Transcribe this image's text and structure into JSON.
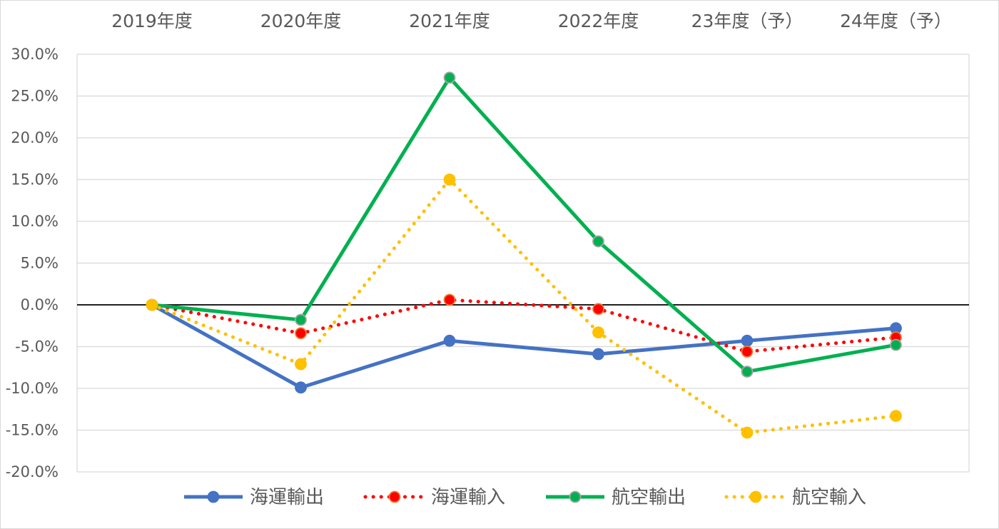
{
  "chart_data": {
    "type": "line",
    "categories": [
      "2019年度",
      "2020年度",
      "2021年度",
      "2022年度",
      "23年度（予）",
      "24年度（予）"
    ],
    "y_tick_labels": [
      "30.0%",
      "25.0%",
      "20.0%",
      "15.0%",
      "10.0%",
      "5.0%",
      "0.0%",
      "-5.0%",
      "-10.0%",
      "-15.0%",
      "-20.0%"
    ],
    "ylim": [
      -20,
      30
    ],
    "y_step": 5,
    "y_unit": "%",
    "grid": true,
    "x_axis_position": "top",
    "legend_position": "bottom",
    "series": [
      {
        "name": "海運輸出",
        "values": [
          0.0,
          -9.9,
          -4.3,
          -5.9,
          -4.3,
          -2.8
        ],
        "color": "#4472C4",
        "line_style": "solid",
        "marker_fill": "#4472C4",
        "marker_stroke": "#4472C4"
      },
      {
        "name": "海運輸入",
        "values": [
          0.0,
          -3.4,
          0.6,
          -0.5,
          -5.6,
          -3.9
        ],
        "color": "#FF0000",
        "line_style": "dotted",
        "marker_fill": "#FF0000",
        "marker_stroke": "#ED7D31"
      },
      {
        "name": "航空輸出",
        "values": [
          0.0,
          -1.8,
          27.2,
          7.6,
          -8.0,
          -4.8
        ],
        "color": "#00B050",
        "line_style": "solid",
        "marker_fill": "#00B050",
        "marker_stroke": "#A5A5A5"
      },
      {
        "name": "航空輸入",
        "values": [
          0.0,
          -7.1,
          15.0,
          -3.3,
          -15.3,
          -13.3
        ],
        "color": "#FFC000",
        "line_style": "dotted",
        "marker_fill": "#FFC000",
        "marker_stroke": "#FFC000"
      }
    ]
  }
}
